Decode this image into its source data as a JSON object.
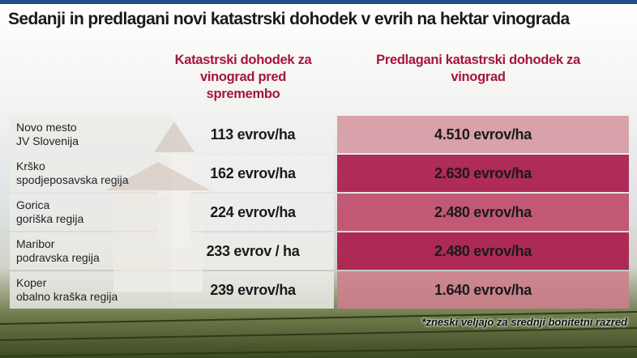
{
  "header": {
    "title": "Sedanji in predlagani novi katastrski dohodek v evrih na hektar vinograda"
  },
  "table": {
    "headers": [
      "Katastrski dohodek za vinograd pred spremembo",
      "Predlagani katastrski dohodek za vinograd"
    ],
    "rows": [
      {
        "name": "Novo mesto",
        "region": "JV Slovenija",
        "current": "113 evrov/ha",
        "proposed": "4.510 evrov/ha"
      },
      {
        "name": "Krško",
        "region": "spodjeposavska regija",
        "current": "162 evrov/ha",
        "proposed": "2.630 evrov/ha"
      },
      {
        "name": "Gorica",
        "region": "goriška regija",
        "current": "224 evrov/ha",
        "proposed": "2.480 evrov/ha"
      },
      {
        "name": "Maribor",
        "region": "podravska regija",
        "current": "233 evrov / ha",
        "proposed": "2.480 evrov/ha"
      },
      {
        "name": "Koper",
        "region": "obalno kraška regija",
        "current": "239 evrov/ha",
        "proposed": "1.640 evrov/ha"
      }
    ]
  },
  "footnote": "*zneski veljajo za srednji bonitetni razred"
}
